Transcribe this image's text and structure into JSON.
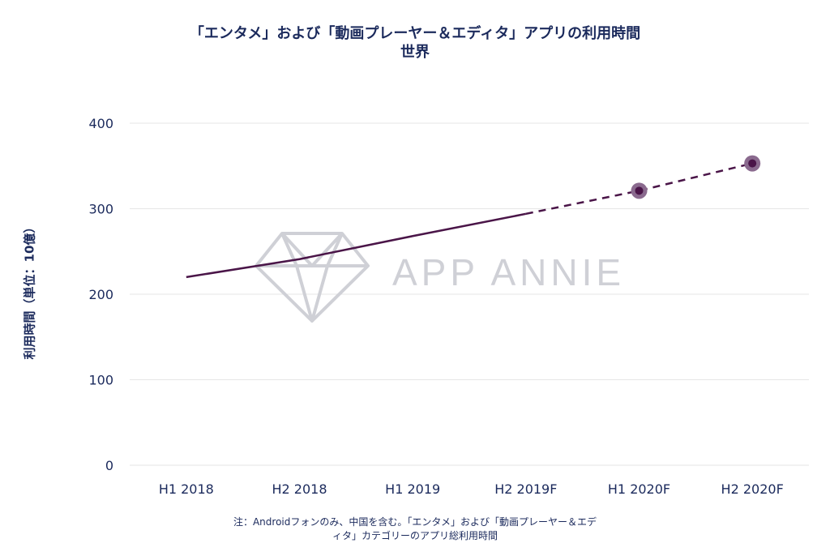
{
  "title": {
    "line1": "「エンタメ」および「動画プレーヤー＆エディタ」アプリの利用時間",
    "line2": "世界"
  },
  "watermark": {
    "text": "APP ANNIE",
    "icon": "diamond-icon",
    "color": "#cfd0d6"
  },
  "footnote": {
    "line1": "注：Androidフォンのみ、中国を含む。「エンタメ」および「動画プレーヤー＆エデ",
    "line2": "ィタ」カテゴリーのアプリ総利用時間"
  },
  "colors": {
    "series": "#4a1548",
    "marker_halo": "#8a6a8e",
    "grid": "#e6e6e6",
    "text": "#1b2a5c"
  },
  "chart_data": {
    "type": "line",
    "title": "「エンタメ」および「動画プレーヤー＆エディタ」アプリの利用時間",
    "subtitle": "世界",
    "xlabel": "",
    "ylabel": "利用時間（単位：10億）",
    "categories": [
      "H1 2018",
      "H2 2018",
      "H1 2019",
      "H2 2019F",
      "H1 2020F",
      "H2 2020F"
    ],
    "yticks": [
      0,
      100,
      200,
      300,
      400
    ],
    "ylim": [
      0,
      400
    ],
    "grid": true,
    "series": [
      {
        "values": [
          220,
          241,
          268,
          294,
          321,
          353
        ],
        "solid_until_index": 3,
        "markers_at": [
          4,
          5
        ]
      }
    ]
  }
}
